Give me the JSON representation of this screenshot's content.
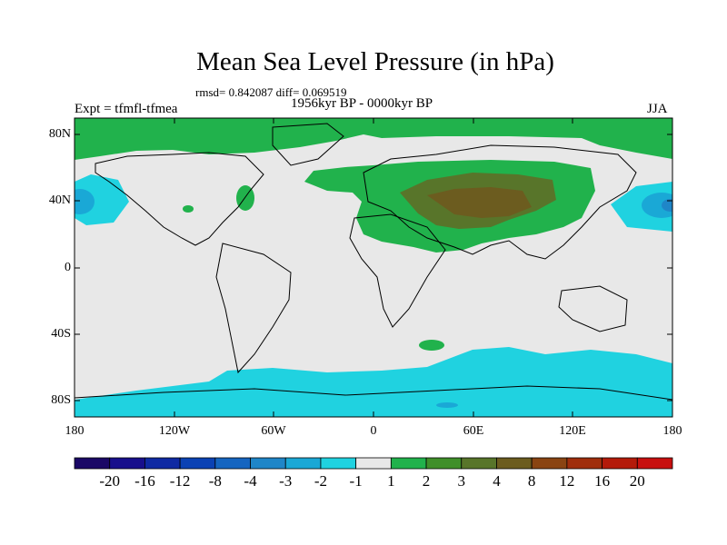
{
  "title": "Mean Sea Level Pressure (in hPa)",
  "stats": "rmsd= 0.842087 diff= 0.069519",
  "subtitle": "1956kyr BP - 0000kyr BP",
  "experiment": "Expt = tfmfl-tfmea",
  "season": "JJA",
  "lat_labels": [
    "80N",
    "40N",
    "0",
    "40S",
    "80S"
  ],
  "lon_labels": [
    "180",
    "120W",
    "60W",
    "0",
    "60E",
    "120E",
    "180"
  ],
  "colorbar": {
    "colors": [
      "#1a0866",
      "#180f8c",
      "#0f2aa3",
      "#0b42b4",
      "#1565c0",
      "#1f86c8",
      "#1aa8d6",
      "#20d2e0",
      "#e8e8e8",
      "#21b24c",
      "#3f8f2a",
      "#58752a",
      "#6c5c1f",
      "#8a4412",
      "#a02e0c",
      "#b41a0a",
      "#c8100f"
    ],
    "labels": [
      "-20",
      "-16",
      "-12",
      "-8",
      "-4",
      "-3",
      "-2",
      "-1",
      "1",
      "2",
      "3",
      "4",
      "8",
      "12",
      "16",
      "20"
    ]
  }
}
